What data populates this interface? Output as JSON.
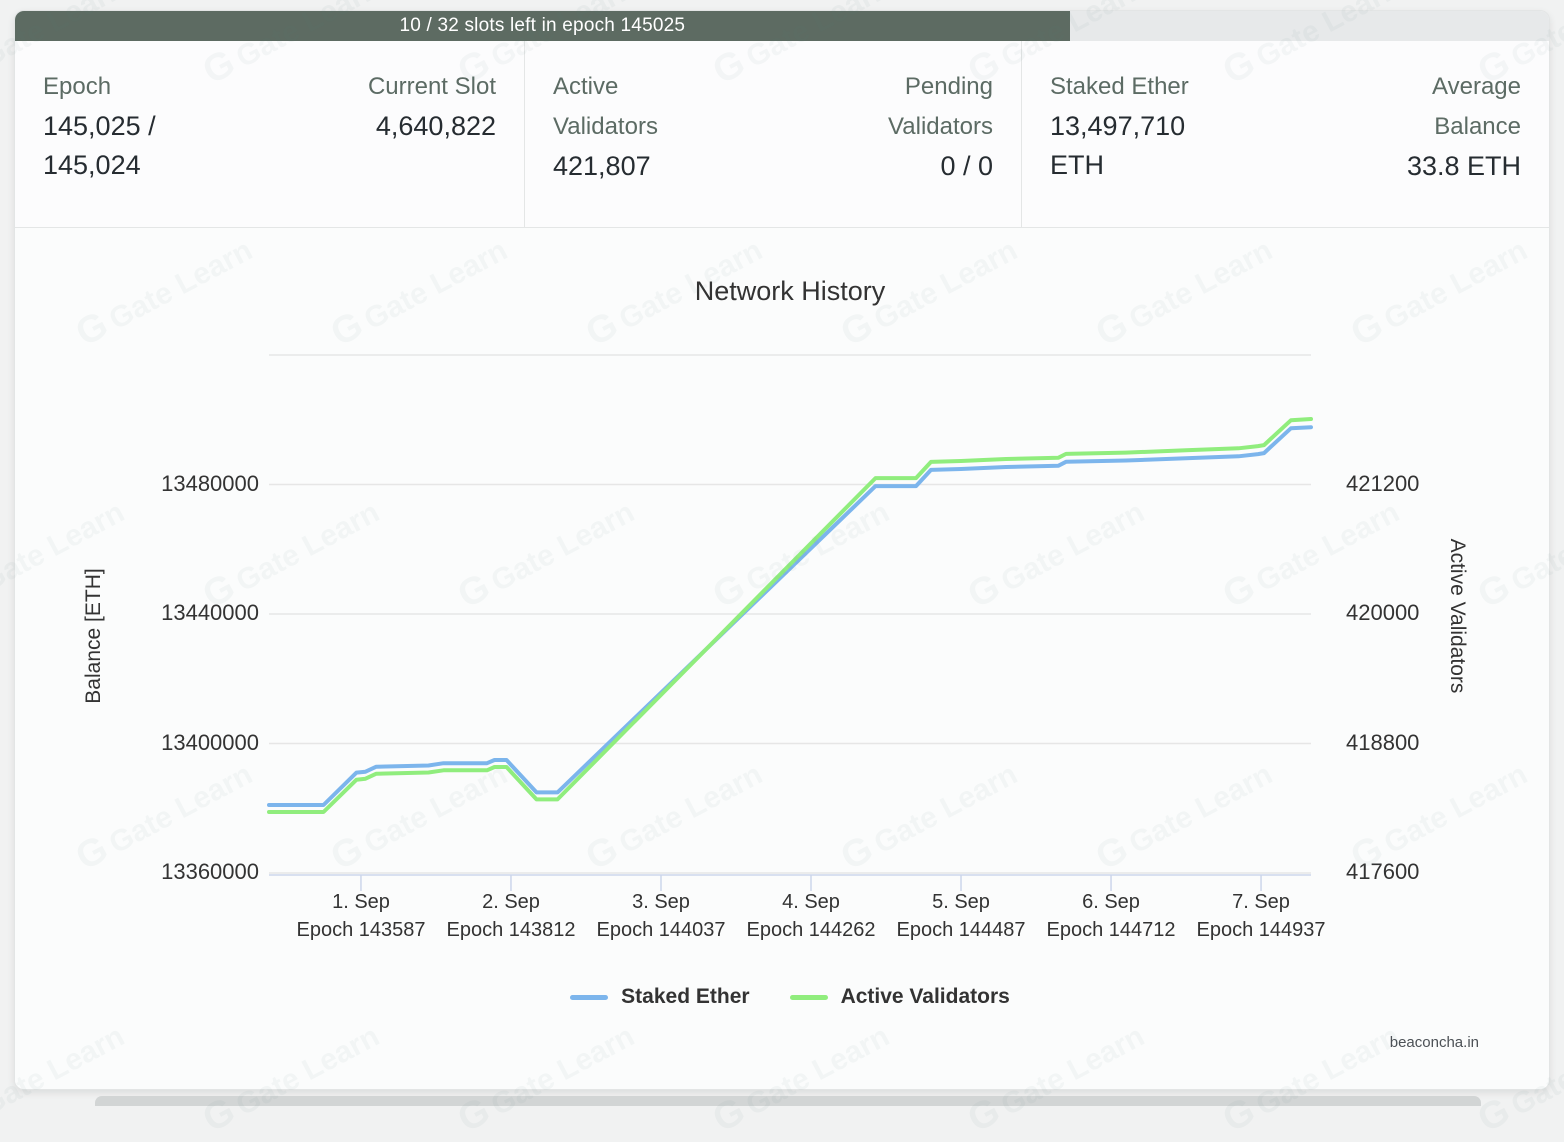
{
  "watermark": {
    "text": "Gate Learn",
    "logo_glyph": "G"
  },
  "progress_bar": {
    "label": "10 / 32 slots left in epoch 145025",
    "fraction": 0.6875,
    "fill_color": "#5d6b62",
    "track_color": "#e7e9ea"
  },
  "stats": {
    "groups": [
      {
        "items": [
          {
            "label": "Epoch",
            "value": "145,025 / 145,024"
          },
          {
            "label": "Current Slot",
            "value": "4,640,822"
          }
        ]
      },
      {
        "items": [
          {
            "label": "Active Validators",
            "value": "421,807"
          },
          {
            "label": "Pending Validators",
            "value": "0 / 0"
          }
        ]
      },
      {
        "items": [
          {
            "label": "Staked Ether",
            "value": "13,497,710 ETH"
          },
          {
            "label": "Average Balance",
            "value": "33.8 ETH"
          }
        ]
      }
    ]
  },
  "chart_data": {
    "type": "line",
    "title": "Network History",
    "credits": "beaconcha.in",
    "grid": "horizontal-only",
    "legend_position": "bottom-center",
    "colors": {
      "staked_ether": "#7cb5ec",
      "active_validators": "#90ed7d",
      "gridline": "#e6e6e6",
      "axis_line": "#ccd6eb"
    },
    "legend": [
      {
        "label": "Staked Ether",
        "color": "#7cb5ec"
      },
      {
        "label": "Active Validators",
        "color": "#90ed7d"
      }
    ],
    "xaxis": {
      "day_min": 0.387,
      "day_max": 7.333,
      "ticks": [
        {
          "day": 1,
          "date": "1. Sep",
          "epoch": "Epoch 143587"
        },
        {
          "day": 2,
          "date": "2. Sep",
          "epoch": "Epoch 143812"
        },
        {
          "day": 3,
          "date": "3. Sep",
          "epoch": "Epoch 144037"
        },
        {
          "day": 4,
          "date": "4. Sep",
          "epoch": "Epoch 144262"
        },
        {
          "day": 5,
          "date": "5. Sep",
          "epoch": "Epoch 144487"
        },
        {
          "day": 6,
          "date": "6. Sep",
          "epoch": "Epoch 144712"
        },
        {
          "day": 7,
          "date": "7. Sep",
          "epoch": "Epoch 144937"
        }
      ]
    },
    "yaxis_left": {
      "title": "Balance [ETH]",
      "min": 13360000,
      "max": 13520000,
      "tick_interval": 40000,
      "tick_labels": [
        "13480000",
        "13440000",
        "13400000",
        "13360000"
      ]
    },
    "yaxis_right": {
      "title": "Active Validators",
      "min": 417600,
      "max": 422400,
      "tick_interval": 1200,
      "tick_labels": [
        "421200",
        "420000",
        "418800",
        "417600"
      ]
    },
    "series": [
      {
        "name": "Staked Ether",
        "axis": "left",
        "color": "#7cb5ec",
        "points": [
          [
            0.387,
            13381000
          ],
          [
            0.75,
            13381000
          ],
          [
            0.97,
            13391000
          ],
          [
            1.03,
            13391300
          ],
          [
            1.1,
            13392800
          ],
          [
            1.45,
            13393200
          ],
          [
            1.55,
            13393900
          ],
          [
            1.84,
            13393900
          ],
          [
            1.89,
            13394900
          ],
          [
            1.97,
            13394900
          ],
          [
            2.17,
            13384900
          ],
          [
            2.31,
            13384900
          ],
          [
            4.43,
            13479500
          ],
          [
            4.7,
            13479500
          ],
          [
            4.8,
            13484500
          ],
          [
            5.0,
            13484800
          ],
          [
            5.3,
            13485400
          ],
          [
            5.65,
            13485800
          ],
          [
            5.7,
            13487000
          ],
          [
            6.1,
            13487400
          ],
          [
            6.5,
            13488100
          ],
          [
            6.85,
            13488700
          ],
          [
            6.98,
            13489400
          ],
          [
            7.02,
            13489700
          ],
          [
            7.2,
            13497400
          ],
          [
            7.333,
            13497710
          ]
        ]
      },
      {
        "name": "Active Validators",
        "axis": "right",
        "color": "#90ed7d",
        "points": [
          [
            0.387,
            418165
          ],
          [
            0.75,
            418165
          ],
          [
            0.97,
            418465
          ],
          [
            1.03,
            418474
          ],
          [
            1.1,
            418519
          ],
          [
            1.45,
            418531
          ],
          [
            1.55,
            418552
          ],
          [
            1.84,
            418552
          ],
          [
            1.89,
            418582
          ],
          [
            1.97,
            418582
          ],
          [
            2.17,
            418282
          ],
          [
            2.31,
            418282
          ],
          [
            4.43,
            421259
          ],
          [
            4.7,
            421259
          ],
          [
            4.8,
            421409
          ],
          [
            5.0,
            421418
          ],
          [
            5.3,
            421436
          ],
          [
            5.65,
            421448
          ],
          [
            5.7,
            421484
          ],
          [
            6.1,
            421496
          ],
          [
            6.5,
            421517
          ],
          [
            6.85,
            421535
          ],
          [
            6.98,
            421556
          ],
          [
            7.02,
            421565
          ],
          [
            7.2,
            421796
          ],
          [
            7.333,
            421807
          ]
        ]
      }
    ]
  }
}
